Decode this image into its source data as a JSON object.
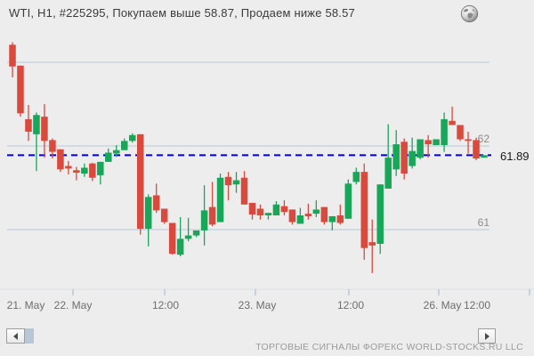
{
  "window": {
    "title": "WTI, H1, #225295, Покупаем выше 58.87, Продаем ниже 58.57"
  },
  "chart_data": {
    "type": "candlestick",
    "title": "WTI, H1, #225295, Покупаем выше 58.87, Продаем ниже 58.57",
    "instrument": "WTI",
    "timeframe": "H1",
    "signal_number": "#225295",
    "signal_buy_above": "58.87",
    "signal_sell_below": "58.57",
    "current_price": "61.89",
    "price_line_value": 61.89,
    "y_axis": {
      "labels": [
        "62",
        "61"
      ],
      "label_values": [
        62,
        61
      ],
      "grid_values": [
        63,
        62,
        61
      ],
      "range": [
        60.4,
        63.3
      ]
    },
    "x_axis": {
      "labels": [
        "21. May",
        "22. May",
        "12:00",
        "23. May",
        "12:00",
        "26. May",
        "12:00"
      ]
    },
    "candles_ohlc": [
      [
        63.21,
        63.24,
        62.82,
        62.95
      ],
      [
        62.96,
        62.96,
        62.35,
        62.39
      ],
      [
        62.32,
        62.49,
        62.06,
        62.17
      ],
      [
        62.14,
        62.4,
        61.7,
        62.37
      ],
      [
        62.35,
        62.5,
        61.86,
        62.06
      ],
      [
        62.07,
        62.09,
        61.85,
        61.93
      ],
      [
        61.96,
        61.96,
        61.69,
        61.72
      ],
      [
        61.76,
        61.82,
        61.66,
        61.73
      ],
      [
        61.71,
        61.75,
        61.59,
        61.68
      ],
      [
        61.67,
        61.79,
        61.63,
        61.74
      ],
      [
        61.79,
        61.8,
        61.58,
        61.62
      ],
      [
        61.65,
        61.81,
        61.54,
        61.81
      ],
      [
        61.81,
        61.97,
        61.81,
        61.92
      ],
      [
        61.91,
        62.01,
        61.87,
        61.95
      ],
      [
        61.95,
        62.09,
        61.95,
        62.06
      ],
      [
        62.06,
        62.15,
        62.04,
        62.13
      ],
      [
        62.14,
        62.14,
        60.94,
        61.01
      ],
      [
        61.01,
        61.42,
        60.8,
        61.39
      ],
      [
        61.41,
        61.55,
        61.2,
        61.23
      ],
      [
        61.25,
        61.25,
        61.07,
        61.09
      ],
      [
        61.08,
        61.08,
        60.7,
        60.71
      ],
      [
        60.7,
        61.15,
        60.68,
        60.89
      ],
      [
        60.89,
        61.14,
        60.86,
        60.93
      ],
      [
        60.93,
        60.99,
        60.91,
        60.99
      ],
      [
        60.99,
        61.53,
        60.81,
        61.23
      ],
      [
        61.27,
        61.57,
        61.04,
        61.06
      ],
      [
        61.09,
        61.67,
        61.09,
        61.62
      ],
      [
        61.63,
        61.69,
        61.35,
        61.53
      ],
      [
        61.54,
        61.69,
        61.44,
        61.59
      ],
      [
        61.62,
        61.7,
        61.3,
        61.3
      ],
      [
        61.32,
        61.32,
        61.12,
        61.18
      ],
      [
        61.25,
        61.3,
        61.12,
        61.17
      ],
      [
        61.17,
        61.2,
        61.12,
        61.2
      ],
      [
        61.17,
        61.34,
        61.17,
        61.3
      ],
      [
        61.28,
        61.35,
        61.17,
        61.21
      ],
      [
        61.24,
        61.24,
        61.06,
        61.09
      ],
      [
        61.07,
        61.26,
        61.07,
        61.17
      ],
      [
        61.19,
        61.31,
        61.12,
        61.16
      ],
      [
        61.19,
        61.35,
        61.15,
        61.24
      ],
      [
        61.27,
        61.27,
        61.06,
        61.09
      ],
      [
        61.09,
        61.16,
        60.99,
        61.16
      ],
      [
        61.17,
        61.3,
        61.06,
        61.08
      ],
      [
        61.13,
        61.6,
        61.13,
        61.55
      ],
      [
        61.57,
        61.74,
        61.54,
        61.69
      ],
      [
        61.69,
        61.79,
        60.64,
        60.78
      ],
      [
        60.85,
        61.12,
        60.48,
        60.81
      ],
      [
        60.83,
        61.54,
        60.71,
        61.54
      ],
      [
        61.49,
        62.26,
        61.49,
        61.86
      ],
      [
        61.72,
        62.19,
        61.64,
        62.02
      ],
      [
        62.05,
        62.09,
        61.6,
        61.67
      ],
      [
        61.76,
        62.1,
        61.73,
        61.94
      ],
      [
        61.86,
        62.08,
        61.84,
        62.08
      ],
      [
        62.07,
        62.13,
        61.86,
        62.02
      ],
      [
        62.01,
        62.08,
        62.01,
        62.08
      ],
      [
        62.01,
        62.4,
        61.93,
        62.32
      ],
      [
        62.3,
        62.47,
        62.25,
        62.25
      ],
      [
        62.25,
        62.25,
        62.06,
        62.08
      ],
      [
        62.08,
        62.17,
        61.91,
        62.06
      ],
      [
        62.07,
        62.1,
        61.83,
        61.85
      ],
      [
        61.86,
        61.89,
        61.86,
        61.89
      ]
    ],
    "colors": {
      "up": "#18a659",
      "down": "#d74a3d",
      "grid": "#c3cfdf",
      "axis": "#aebcd0",
      "price_line": "#0000c8",
      "background": "#ededed"
    },
    "legend_position": "none",
    "grid": "horizontal-only"
  },
  "footer": {
    "brand": "ТОРГОВЫЕ СИГНАЛЫ ФОРЕКС WORLD-STOCKS.RU LLC"
  }
}
